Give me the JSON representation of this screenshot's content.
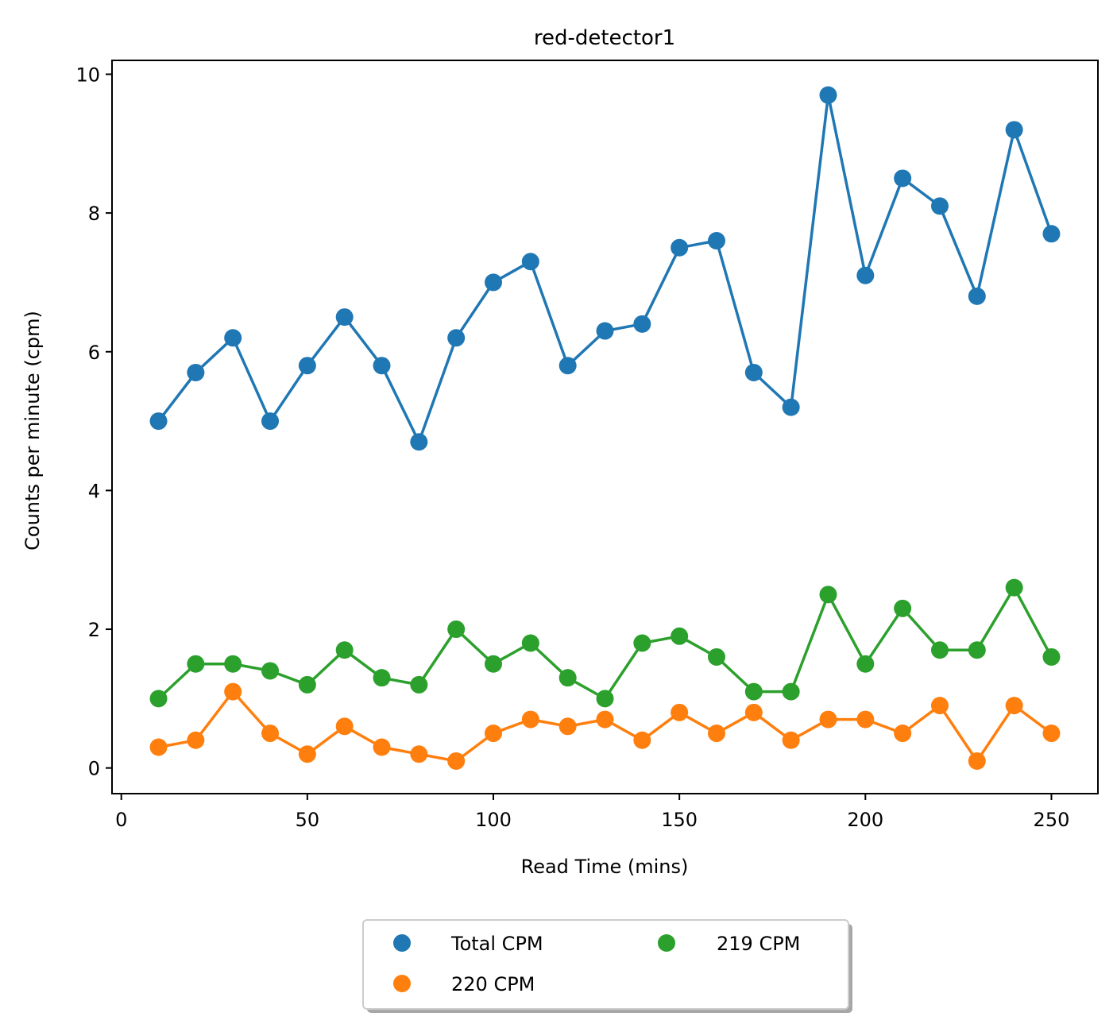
{
  "chart_data": {
    "type": "line",
    "title": "red-detector1",
    "xlabel": "Read Time (mins)",
    "ylabel": "Counts per minute (cpm)",
    "xlim": [
      -2.5,
      262.5
    ],
    "ylim": [
      -0.37,
      10.2
    ],
    "xticks": [
      0,
      50,
      100,
      150,
      200,
      250
    ],
    "yticks": [
      0,
      2,
      4,
      6,
      8,
      10
    ],
    "grid": false,
    "legend_position": "bottom-center, below axes, 2 columns, shadow",
    "x": [
      10,
      20,
      30,
      40,
      50,
      60,
      70,
      80,
      90,
      100,
      110,
      120,
      130,
      140,
      150,
      160,
      170,
      180,
      190,
      200,
      210,
      220,
      230,
      240,
      250
    ],
    "series": [
      {
        "name": "Total CPM",
        "color": "#1f77b4",
        "values": [
          5.0,
          5.7,
          6.2,
          5.0,
          5.8,
          6.5,
          5.8,
          4.7,
          6.2,
          7.0,
          7.3,
          5.8,
          6.3,
          6.4,
          7.5,
          7.6,
          5.7,
          5.2,
          9.7,
          7.1,
          8.5,
          8.1,
          6.8,
          9.2,
          7.7
        ]
      },
      {
        "name": "220 CPM",
        "color": "#ff7f0e",
        "values": [
          0.3,
          0.4,
          1.1,
          0.5,
          0.2,
          0.6,
          0.3,
          0.2,
          0.1,
          0.5,
          0.7,
          0.6,
          0.7,
          0.4,
          0.8,
          0.5,
          0.8,
          0.4,
          0.7,
          0.7,
          0.5,
          0.9,
          0.1,
          0.9,
          0.5
        ]
      },
      {
        "name": "219 CPM",
        "color": "#2ca02c",
        "values": [
          1.0,
          1.5,
          1.5,
          1.4,
          1.2,
          1.7,
          1.3,
          1.2,
          2.0,
          1.5,
          1.8,
          1.3,
          1.0,
          1.8,
          1.9,
          1.6,
          1.1,
          1.1,
          2.5,
          1.5,
          2.3,
          1.7,
          1.7,
          2.6,
          1.6
        ]
      }
    ]
  }
}
